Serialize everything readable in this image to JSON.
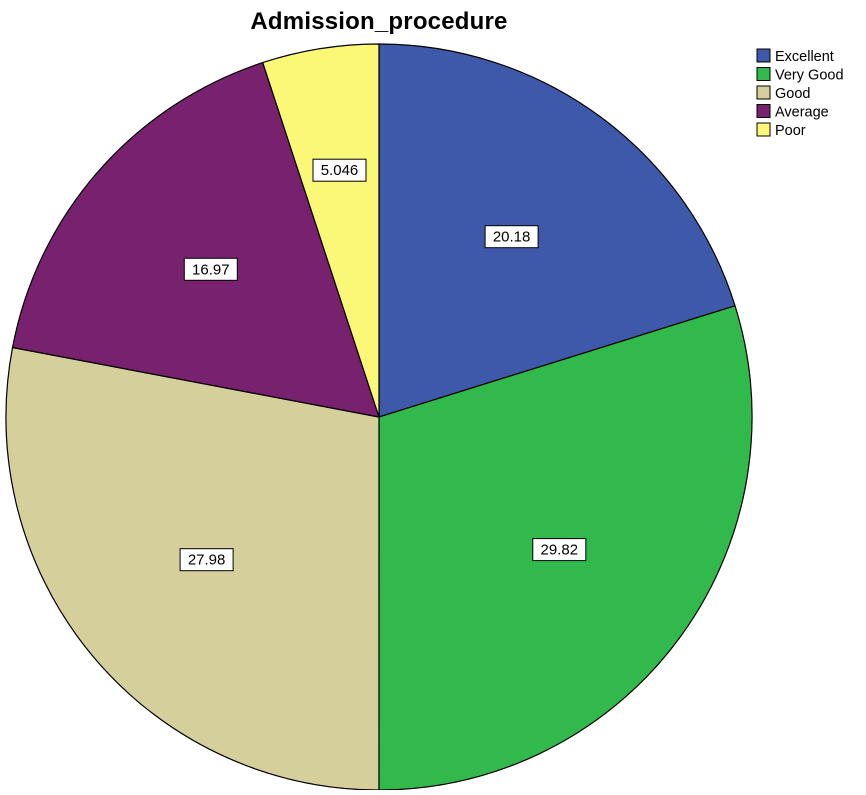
{
  "chart_data": {
    "type": "pie",
    "title": "Admission_procedure",
    "categories": [
      "Excellent",
      "Very Good",
      "Good",
      "Average",
      "Poor"
    ],
    "values": [
      20.18,
      29.82,
      27.98,
      16.97,
      5.046
    ],
    "labels": [
      "20.18",
      "29.82",
      "27.98",
      "16.97",
      "5.046"
    ],
    "colors": [
      "#3f59aa",
      "#31b94b",
      "#d5cf9c",
      "#77216f",
      "#fbf777"
    ],
    "start_angle": "12 o'clock",
    "direction": "clockwise",
    "legend": {
      "position": "top-right",
      "entries": [
        "Excellent",
        "Very Good",
        "Good",
        "Average",
        "Poor"
      ]
    }
  }
}
